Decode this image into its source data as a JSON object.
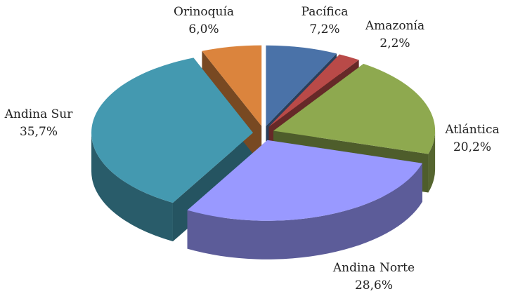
{
  "chart_data": {
    "type": "pie3d",
    "categories": [
      "Pacífica",
      "Amazonía",
      "Atlántica",
      "Andina Norte",
      "Andina Sur",
      "Orinoquía"
    ],
    "values": [
      7.2,
      2.2,
      20.2,
      28.6,
      35.7,
      6.0
    ],
    "value_labels": [
      "7,2%",
      "2,2%",
      "20,2%",
      "28,6%",
      "35,7%",
      "6,0%"
    ],
    "colors": [
      "#4a72a8",
      "#b94a48",
      "#8ea94f",
      "#9999ff",
      "#4499b0",
      "#db843d"
    ]
  }
}
